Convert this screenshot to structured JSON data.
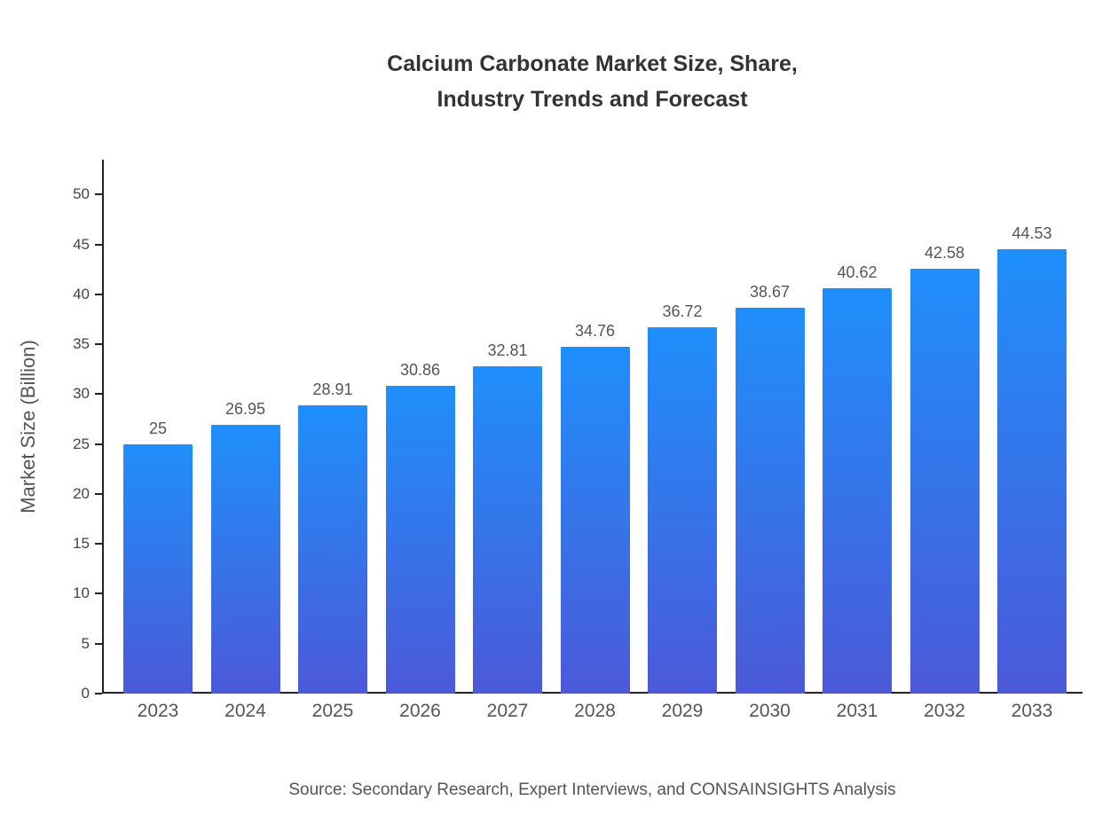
{
  "chart": {
    "title_line1": "Calcium Carbonate Market Size, Share,",
    "title_line2": "Industry Trends and Forecast"
  },
  "chart_data": {
    "type": "bar",
    "title": "Calcium Carbonate Market Size, Share, Industry Trends and Forecast",
    "categories": [
      "2023",
      "2024",
      "2025",
      "2026",
      "2027",
      "2028",
      "2029",
      "2030",
      "2031",
      "2032",
      "2033"
    ],
    "values": [
      25,
      26.95,
      28.91,
      30.86,
      32.81,
      34.76,
      36.72,
      38.67,
      40.62,
      42.58,
      44.53
    ],
    "value_labels": [
      "25",
      "26.95",
      "28.91",
      "30.86",
      "32.81",
      "34.76",
      "36.72",
      "38.67",
      "40.62",
      "42.58",
      "44.53"
    ],
    "xlabel": "",
    "ylabel": "Market Size (Billion)",
    "ylim": [
      0,
      53.5
    ],
    "yticks": [
      0,
      5,
      10,
      15,
      20,
      25,
      30,
      35,
      40,
      45,
      50
    ],
    "grid": false,
    "legend": false,
    "bar_gradient_top": "#1F8FFB",
    "bar_gradient_bottom": "#4C59D8"
  },
  "colors": {
    "axis": "#222222",
    "title_text": "#333333",
    "label_text": "#555555"
  },
  "footer": {
    "source": "Source: Secondary Research, Expert Interviews, and CONSAINSIGHTS Analysis"
  }
}
